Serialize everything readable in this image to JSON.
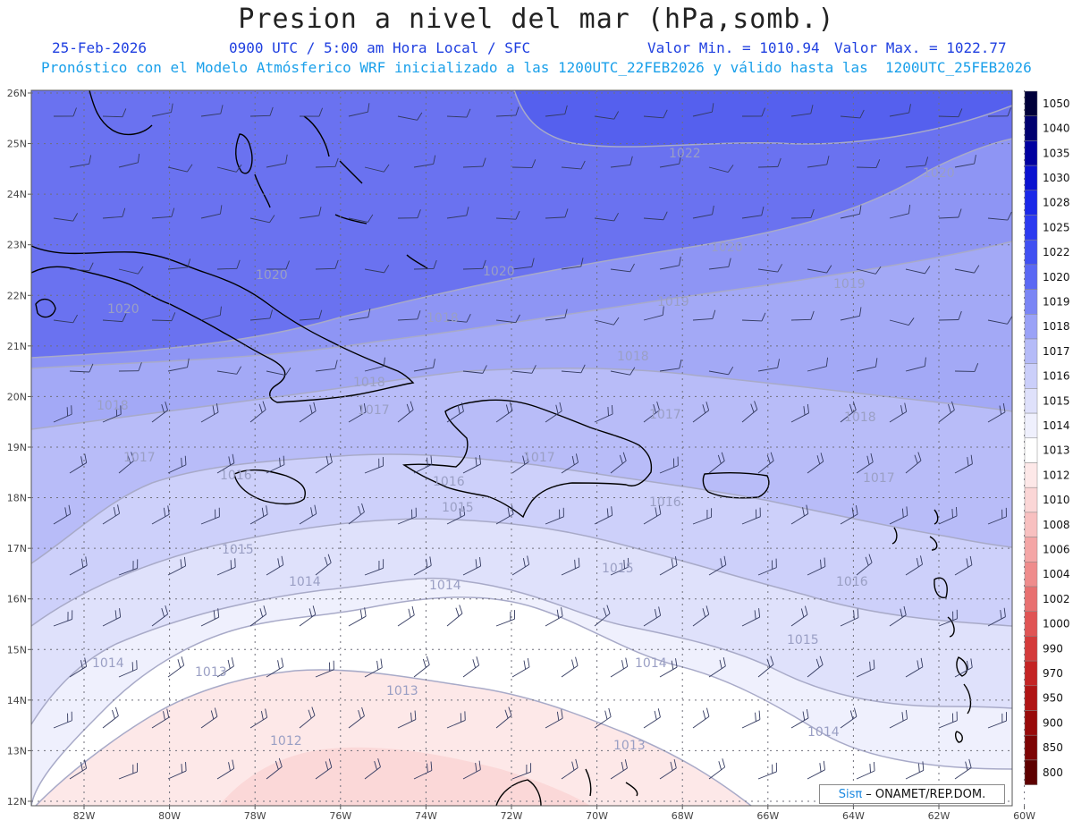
{
  "title": "Presion a nivel del mar (hPa,somb.)",
  "header": {
    "date": "25-Feb-2026",
    "time": "0900 UTC / 5:00 am Hora Local / SFC",
    "min_label": "Valor Min. = 1010.94",
    "max_label": "Valor Max. = 1022.77",
    "model_line": "Pronóstico con el Modelo Atmósferico WRF inicializado a las 1200UTC_22FEB2026 y válido hasta las  1200UTC_25FEB2026"
  },
  "lat_labels": [
    "26N",
    "25N",
    "24N",
    "23N",
    "22N",
    "21N",
    "20N",
    "19N",
    "18N",
    "17N",
    "16N",
    "15N",
    "14N",
    "13N",
    "12N"
  ],
  "lon_labels": [
    "82W",
    "80W",
    "78W",
    "76W",
    "74W",
    "72W",
    "70W",
    "68W",
    "66W",
    "64W",
    "62W",
    "60W"
  ],
  "isobar_labels": [
    "1022",
    "1020",
    "1020",
    "1020",
    "1020",
    "1020",
    "1019",
    "1019",
    "1018",
    "1018",
    "1018",
    "1018",
    "1018",
    "1017",
    "1017",
    "1017",
    "1017",
    "1017",
    "1016",
    "1016",
    "1016",
    "1016",
    "1015",
    "1015",
    "1015",
    "1015",
    "1014",
    "1014",
    "1014",
    "1014",
    "1014",
    "1013",
    "1013",
    "1013",
    "1012"
  ],
  "colorbar": {
    "levels": [
      "1050",
      "1040",
      "1035",
      "1030",
      "1028",
      "1025",
      "1022",
      "1020",
      "1019",
      "1018",
      "1017",
      "1016",
      "1015",
      "1014",
      "1013",
      "1012",
      "1010",
      "1008",
      "1006",
      "1004",
      "1002",
      "1000",
      "990",
      "970",
      "950",
      "900",
      "850",
      "800"
    ],
    "colors": [
      "#00003a",
      "#000070",
      "#0000a0",
      "#0a12d0",
      "#1a28e8",
      "#2b3af0",
      "#4050f2",
      "#5a68f4",
      "#7a85f5",
      "#9aa2f7",
      "#b5bbf8",
      "#cbcffa",
      "#dfe1fb",
      "#eff0fd",
      "#ffffff",
      "#fde8e8",
      "#fbd6d6",
      "#f8c0c0",
      "#f4a6a6",
      "#ef8c8c",
      "#e87070",
      "#e05454",
      "#d43a3a",
      "#c42424",
      "#b01414",
      "#980a0a",
      "#7d0404",
      "#5e0000"
    ]
  },
  "credit": {
    "brand": "Sisπ",
    "text": "– ONAMET/REP.DOM."
  },
  "pressure_range": {
    "min": 1010.94,
    "max": 1022.77,
    "unit": "hPa"
  }
}
